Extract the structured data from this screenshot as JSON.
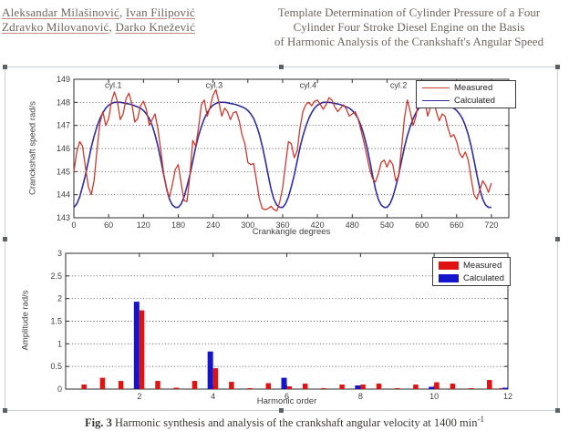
{
  "header": {
    "author_sep": ", ",
    "authors_line1": [
      "Aleksandar Milašinović",
      "Ivan Filipović"
    ],
    "authors_line2": [
      "Zdravko Milovanović",
      "Darko Knežević"
    ],
    "title_lines": [
      "Template Determination of Cylinder Pressure of a Four",
      "Cylinder Four Stroke Diesel Engine on the Basis",
      "of Harmonic Analysis of the Crankshaft's Angular Speed"
    ]
  },
  "caption": {
    "bold": "Fig. 3",
    "text": " Harmonic synthesis and analysis of the crankshaft angular velocity at 1400 min",
    "sup": "-1"
  },
  "chart_data": [
    {
      "type": "line",
      "xlabel": "Crankangle degrees",
      "ylabel": "Cranckshaft speed rad/s",
      "xlim": [
        0,
        750
      ],
      "ylim": [
        143,
        149
      ],
      "xticks": [
        0,
        60,
        120,
        180,
        240,
        300,
        360,
        420,
        480,
        540,
        600,
        660,
        720
      ],
      "yticks": [
        143,
        144,
        145,
        146,
        147,
        148,
        149
      ],
      "grid": "horizontal dotted",
      "legend_position": "top-right",
      "annotations": [
        {
          "text": "cyl.1",
          "x": 68,
          "y": 148.62
        },
        {
          "text": "cyl.3",
          "x": 242,
          "y": 148.62
        },
        {
          "text": "cyl.4",
          "x": 404,
          "y": 148.62
        },
        {
          "text": "cyl.2",
          "x": 560,
          "y": 148.62
        }
      ],
      "x_start": 0,
      "x_step": 5,
      "series": [
        {
          "name": "Measured",
          "color": "#cb3a2e",
          "values": [
            145.0,
            145.85,
            146.3,
            146.1,
            145.2,
            144.35,
            144.0,
            144.65,
            145.95,
            147.1,
            147.6,
            147.0,
            147.3,
            148.05,
            148.45,
            148.05,
            147.25,
            147.5,
            148.15,
            148.4,
            147.95,
            147.15,
            147.3,
            147.85,
            148.05,
            147.7,
            147.0,
            147.25,
            147.5,
            146.85,
            145.9,
            144.9,
            144.2,
            143.9,
            144.45,
            145.1,
            145.3,
            144.5,
            143.75,
            143.7,
            144.8,
            146.35,
            146.1,
            146.9,
            147.9,
            148.1,
            147.4,
            147.8,
            148.3,
            148.55,
            148.0,
            147.4,
            147.75,
            147.6,
            147.25,
            147.55,
            147.6,
            147.2,
            146.6,
            146.2,
            145.4,
            145.3,
            145.35,
            144.6,
            143.8,
            143.4,
            143.35,
            143.4,
            143.5,
            143.35,
            143.3,
            143.7,
            144.3,
            145.3,
            146.3,
            146.2,
            145.6,
            145.9,
            146.9,
            147.6,
            147.9,
            148.0,
            147.85,
            148.05,
            148.1,
            147.9,
            147.7,
            147.9,
            148.2,
            148.1,
            147.8,
            147.6,
            147.75,
            147.9,
            147.7,
            147.4,
            147.5,
            147.6,
            147.3,
            146.8,
            146.3,
            145.7,
            145.1,
            144.7,
            144.55,
            144.9,
            145.4,
            145.5,
            145.2,
            145.5,
            145.3,
            144.6,
            144.8,
            146.0,
            147.3,
            148.1,
            147.6,
            147.0,
            147.4,
            148.2,
            148.55,
            148.1,
            147.4,
            147.8,
            148.1,
            147.6,
            147.2,
            147.5,
            147.4,
            146.9,
            146.5,
            146.6,
            146.3,
            145.8,
            145.6,
            145.85,
            145.5,
            144.7,
            144.0,
            143.8,
            144.2,
            144.6,
            144.4,
            144.1,
            144.5
          ]
        },
        {
          "name": "Calculated",
          "color": "#2d2da0",
          "values": [
            143.45,
            143.6,
            143.9,
            144.35,
            144.85,
            145.45,
            146.05,
            146.55,
            146.95,
            147.3,
            147.55,
            147.75,
            147.88,
            147.95,
            148.0,
            148.0,
            148.0,
            147.98,
            147.95,
            147.93,
            147.9,
            147.85,
            147.8,
            147.75,
            147.65,
            147.5,
            147.3,
            147.0,
            146.6,
            146.1,
            145.5,
            144.85,
            144.25,
            143.8,
            143.55,
            143.45,
            143.45,
            143.6,
            143.9,
            144.35,
            144.85,
            145.45,
            146.05,
            146.55,
            146.95,
            147.3,
            147.55,
            147.75,
            147.88,
            147.95,
            148.0,
            148.0,
            148.0,
            147.98,
            147.95,
            147.93,
            147.9,
            147.85,
            147.8,
            147.75,
            147.65,
            147.5,
            147.3,
            147.0,
            146.6,
            146.1,
            145.5,
            144.85,
            144.25,
            143.8,
            143.55,
            143.45,
            143.45,
            143.6,
            143.9,
            144.35,
            144.85,
            145.45,
            146.05,
            146.55,
            146.95,
            147.3,
            147.55,
            147.75,
            147.88,
            147.95,
            148.0,
            148.0,
            148.0,
            147.98,
            147.95,
            147.93,
            147.9,
            147.85,
            147.8,
            147.75,
            147.65,
            147.5,
            147.3,
            147.0,
            146.6,
            146.1,
            145.5,
            144.85,
            144.25,
            143.8,
            143.55,
            143.45,
            143.45,
            143.6,
            143.9,
            144.35,
            144.85,
            145.45,
            146.05,
            146.55,
            146.95,
            147.3,
            147.55,
            147.75,
            147.88,
            147.95,
            148.0,
            148.0,
            148.0,
            147.98,
            147.95,
            147.93,
            147.9,
            147.85,
            147.8,
            147.75,
            147.65,
            147.5,
            147.3,
            147.0,
            146.6,
            146.1,
            145.5,
            144.85,
            144.25,
            143.8,
            143.55,
            143.45,
            143.45
          ]
        }
      ]
    },
    {
      "type": "bar",
      "xlabel": "Harmonic order",
      "ylabel": "Amplitude rad/s",
      "xlim": [
        0,
        12
      ],
      "ylim": [
        0,
        3
      ],
      "xticks": [
        2,
        4,
        6,
        8,
        10,
        12
      ],
      "yticks": [
        0,
        0.5,
        1,
        1.5,
        2,
        2.5,
        3
      ],
      "grid": "horizontal dotted",
      "legend_position": "top-right",
      "series": [
        {
          "name": "Measured",
          "color": "#e01212"
        },
        {
          "name": "Calculated",
          "color": "#1414cc"
        }
      ],
      "bars": [
        {
          "order": 0.5,
          "measured": 0.1,
          "calculated": 0
        },
        {
          "order": 1,
          "measured": 0.25,
          "calculated": 0
        },
        {
          "order": 1.5,
          "measured": 0.18,
          "calculated": 0
        },
        {
          "order": 2,
          "measured": 1.74,
          "calculated": 1.93
        },
        {
          "order": 2.5,
          "measured": 0.18,
          "calculated": 0
        },
        {
          "order": 3,
          "measured": 0.03,
          "calculated": 0
        },
        {
          "order": 3.5,
          "measured": 0.18,
          "calculated": 0
        },
        {
          "order": 4,
          "measured": 0.46,
          "calculated": 0.83
        },
        {
          "order": 4.5,
          "measured": 0.16,
          "calculated": 0
        },
        {
          "order": 5,
          "measured": 0.02,
          "calculated": 0
        },
        {
          "order": 5.5,
          "measured": 0.13,
          "calculated": 0
        },
        {
          "order": 6,
          "measured": 0.06,
          "calculated": 0.25
        },
        {
          "order": 6.5,
          "measured": 0.12,
          "calculated": 0
        },
        {
          "order": 7,
          "measured": 0.02,
          "calculated": 0
        },
        {
          "order": 7.5,
          "measured": 0.1,
          "calculated": 0
        },
        {
          "order": 8,
          "measured": 0.1,
          "calculated": 0.08
        },
        {
          "order": 8.5,
          "measured": 0.12,
          "calculated": 0
        },
        {
          "order": 9,
          "measured": 0.02,
          "calculated": 0
        },
        {
          "order": 9.5,
          "measured": 0.1,
          "calculated": 0
        },
        {
          "order": 10,
          "measured": 0.15,
          "calculated": 0.05
        },
        {
          "order": 10.5,
          "measured": 0.12,
          "calculated": 0
        },
        {
          "order": 11,
          "measured": 0.02,
          "calculated": 0
        },
        {
          "order": 11.5,
          "measured": 0.2,
          "calculated": 0
        },
        {
          "order": 12,
          "measured": 0.02,
          "calculated": 0.03
        }
      ]
    }
  ]
}
